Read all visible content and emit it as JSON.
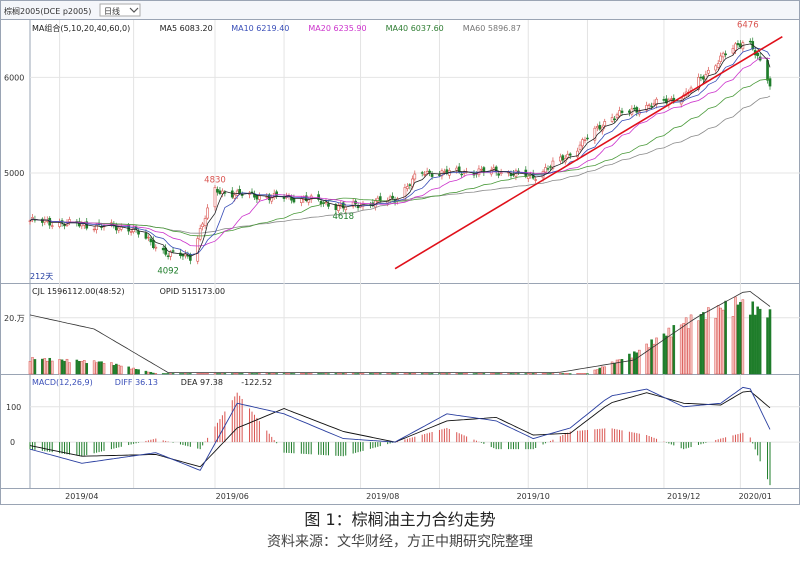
{
  "window": {
    "title": "棕榈2005(DCE p2005)",
    "period": "日线",
    "dropdown_icon": "chevron-down-icon"
  },
  "colors": {
    "up": "#d9534f",
    "up_fill": "#f7c9c6",
    "down": "#1e7d2a",
    "ma5": "#222222",
    "ma10": "#3a4fb8",
    "ma20": "#cc33cc",
    "ma40": "#4a9a3a",
    "ma60": "#8a8a8a",
    "trendline": "#e0101a",
    "diff": "#2a3fa0",
    "dea": "#111111",
    "grid": "#e4e4e4",
    "border": "#9aa4b4"
  },
  "panels": {
    "price": {
      "legend": [
        {
          "text": "MA组合(5,10,20,40,60,0)",
          "color": "#222222"
        },
        {
          "text": "MA5 6083.20",
          "color": "#222222"
        },
        {
          "text": "MA10 6219.40",
          "color": "#3a4fb8"
        },
        {
          "text": "MA20 6235.90",
          "color": "#cc33cc"
        },
        {
          "text": "MA40 6037.60",
          "color": "#2e7d32"
        },
        {
          "text": "MA60 5896.87",
          "color": "#777777"
        }
      ],
      "y_ticks": [
        "6000",
        "5000"
      ],
      "bars_label": "212天"
    },
    "volume": {
      "legend": [
        {
          "text": "CJL 1596112.00(48:52)",
          "color": "#222222"
        },
        {
          "text": "OPID 515173.00",
          "color": "#222222"
        }
      ],
      "y_ticks": [
        "20.万"
      ]
    },
    "macd": {
      "legend": [
        {
          "text": "MACD(12,26,9)",
          "color": "#3a4fb8"
        },
        {
          "text": "DIFF 36.13",
          "color": "#3a4fb8"
        },
        {
          "text": "DEA 97.38",
          "color": "#222222"
        },
        {
          "text": "-122.52",
          "color": "#222222"
        }
      ],
      "y_ticks": [
        "100",
        "0"
      ]
    }
  },
  "chart_data": {
    "type": "candlestick",
    "x_ticks": [
      "2019/04",
      "2019/06",
      "2019/08",
      "2019/10",
      "2019/12",
      "2020/01"
    ],
    "price_annotations": [
      "4830",
      "4618",
      "4092",
      "6476"
    ],
    "price_anchors": [
      {
        "date": "2019-03-20",
        "close": 4500
      },
      {
        "date": "2019-04-10",
        "close": 4460
      },
      {
        "date": "2019-04-30",
        "close": 4420
      },
      {
        "date": "2019-05-15",
        "close": 4150
      },
      {
        "date": "2019-05-24",
        "close": 4130
      },
      {
        "date": "2019-06-03",
        "close": 4810
      },
      {
        "date": "2019-06-20",
        "close": 4760
      },
      {
        "date": "2019-07-10",
        "close": 4730
      },
      {
        "date": "2019-07-25",
        "close": 4640
      },
      {
        "date": "2019-08-15",
        "close": 4730
      },
      {
        "date": "2019-08-25",
        "close": 5000
      },
      {
        "date": "2019-09-10",
        "close": 5010
      },
      {
        "date": "2019-09-25",
        "close": 5020
      },
      {
        "date": "2019-10-10",
        "close": 4960
      },
      {
        "date": "2019-10-25",
        "close": 5200
      },
      {
        "date": "2019-11-10",
        "close": 5580
      },
      {
        "date": "2019-11-25",
        "close": 5700
      },
      {
        "date": "2019-12-10",
        "close": 5800
      },
      {
        "date": "2019-12-25",
        "close": 6200
      },
      {
        "date": "2020-01-05",
        "close": 6420
      },
      {
        "date": "2020-01-14",
        "close": 5920
      }
    ],
    "trendline": [
      {
        "date": "2019-08-15",
        "value": 4000
      },
      {
        "date": "2020-01-17",
        "value": 6350
      }
    ],
    "volume_anchors": [
      {
        "date": "2019-03-20",
        "value": 60000
      },
      {
        "date": "2019-04-20",
        "value": 45000
      },
      {
        "date": "2019-05-10",
        "value": 2000
      },
      {
        "date": "2019-11-01",
        "value": 2000
      },
      {
        "date": "2019-11-20",
        "value": 80000
      },
      {
        "date": "2019-12-10",
        "value": 200000
      },
      {
        "date": "2020-01-01",
        "value": 280000
      },
      {
        "date": "2020-01-14",
        "value": 230000
      }
    ],
    "oi_anchors": [
      {
        "date": "2019-03-20",
        "value": 210000
      },
      {
        "date": "2019-04-15",
        "value": 160000
      },
      {
        "date": "2019-05-15",
        "value": 5000
      },
      {
        "date": "2019-10-20",
        "value": 5000
      },
      {
        "date": "2019-11-20",
        "value": 50000
      },
      {
        "date": "2019-12-15",
        "value": 200000
      },
      {
        "date": "2020-01-05",
        "value": 300000
      },
      {
        "date": "2020-01-14",
        "value": 240000
      }
    ],
    "diff_anchors": [
      {
        "date": "2019-03-20",
        "value": -20
      },
      {
        "date": "2019-04-10",
        "value": -60
      },
      {
        "date": "2019-05-10",
        "value": -30
      },
      {
        "date": "2019-05-28",
        "value": -80
      },
      {
        "date": "2019-06-12",
        "value": 110
      },
      {
        "date": "2019-07-01",
        "value": 80
      },
      {
        "date": "2019-07-25",
        "value": 10
      },
      {
        "date": "2019-08-15",
        "value": 0
      },
      {
        "date": "2019-09-05",
        "value": 80
      },
      {
        "date": "2019-09-25",
        "value": 60
      },
      {
        "date": "2019-10-10",
        "value": 10
      },
      {
        "date": "2019-10-25",
        "value": 40
      },
      {
        "date": "2019-11-10",
        "value": 130
      },
      {
        "date": "2019-11-25",
        "value": 150
      },
      {
        "date": "2019-12-10",
        "value": 100
      },
      {
        "date": "2019-12-25",
        "value": 110
      },
      {
        "date": "2020-01-05",
        "value": 165
      },
      {
        "date": "2020-01-14",
        "value": 36
      }
    ],
    "dea_anchors": [
      {
        "date": "2019-03-20",
        "value": -10
      },
      {
        "date": "2019-04-10",
        "value": -40
      },
      {
        "date": "2019-05-10",
        "value": -35
      },
      {
        "date": "2019-05-28",
        "value": -70
      },
      {
        "date": "2019-06-12",
        "value": 40
      },
      {
        "date": "2019-07-01",
        "value": 95
      },
      {
        "date": "2019-07-25",
        "value": 30
      },
      {
        "date": "2019-08-15",
        "value": 0
      },
      {
        "date": "2019-09-05",
        "value": 60
      },
      {
        "date": "2019-09-25",
        "value": 70
      },
      {
        "date": "2019-10-10",
        "value": 20
      },
      {
        "date": "2019-10-25",
        "value": 25
      },
      {
        "date": "2019-11-10",
        "value": 110
      },
      {
        "date": "2019-11-25",
        "value": 140
      },
      {
        "date": "2019-12-10",
        "value": 110
      },
      {
        "date": "2019-12-25",
        "value": 105
      },
      {
        "date": "2020-01-05",
        "value": 150
      },
      {
        "date": "2020-01-14",
        "value": 97
      }
    ]
  },
  "caption": {
    "title": "图 1：棕榈油主力合约走势",
    "source": "资料来源：文华财经，方正中期研究院整理"
  }
}
